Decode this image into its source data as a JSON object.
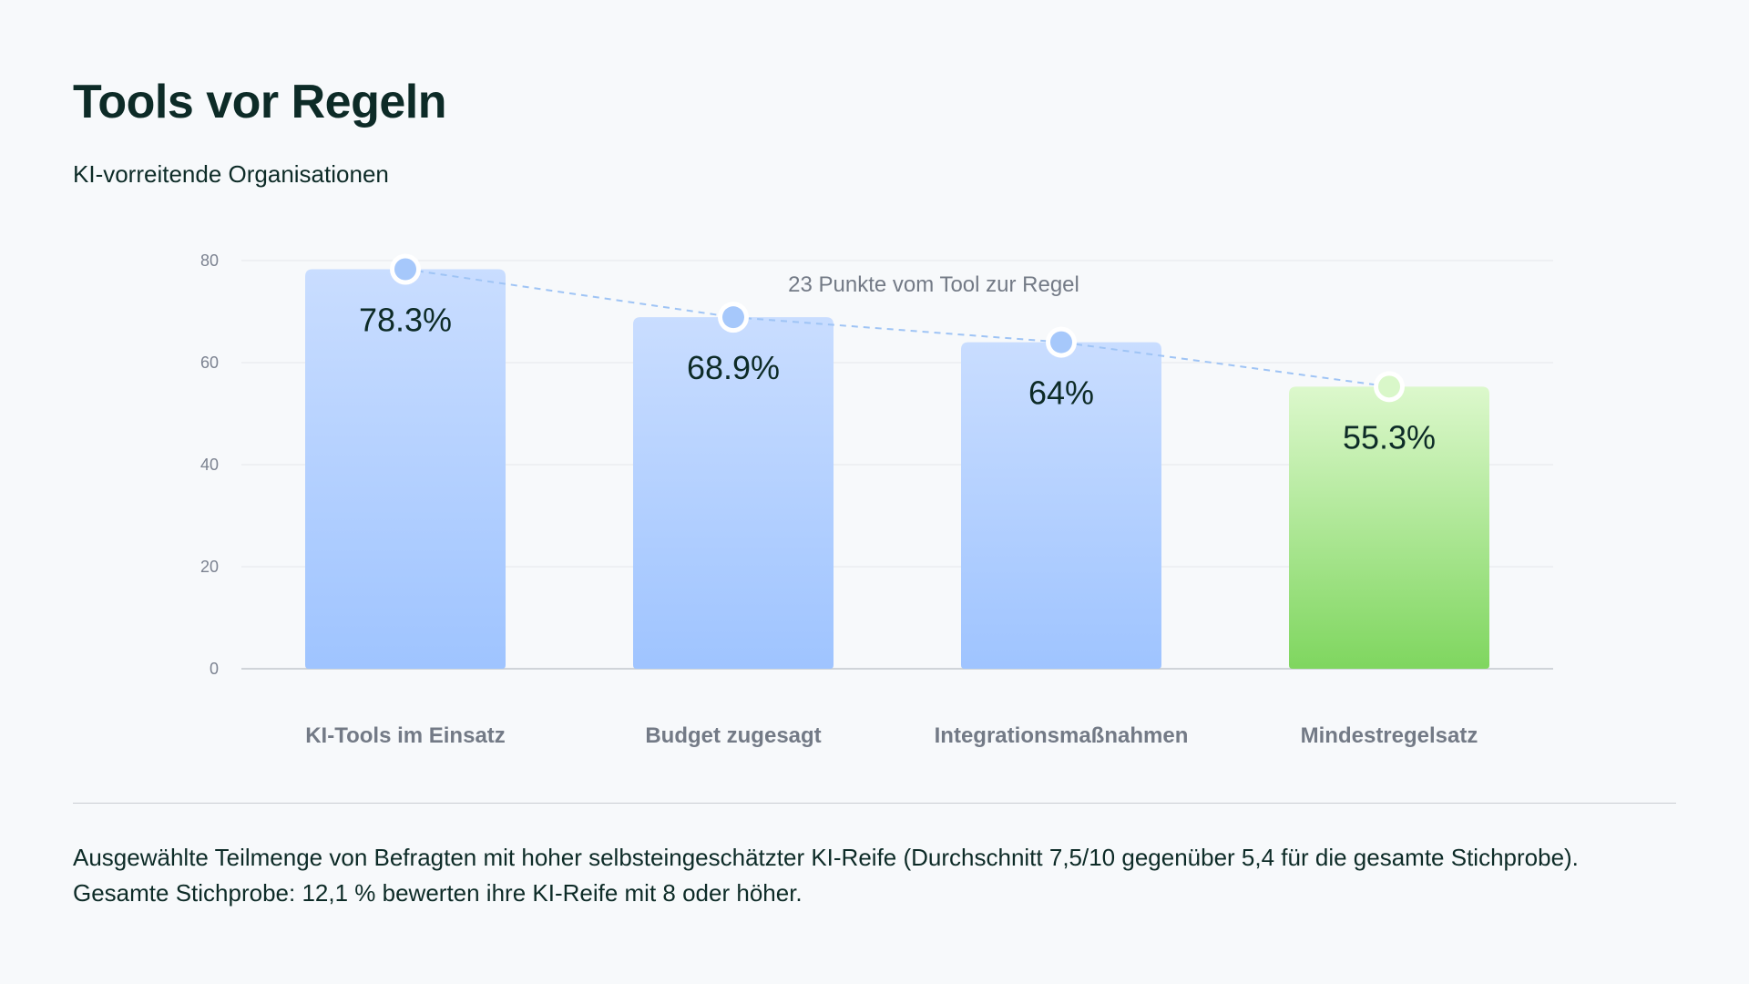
{
  "header": {
    "title": "Tools vor Regeln",
    "subtitle": "KI-vorreitende Organisationen"
  },
  "footnote": "Ausgewählte Teilmenge von Befragten mit hoher selbsteingeschätzter KI-Reife (Durchschnitt 7,5/10 gegenüber 5,4 für die gesamte Stichprobe). Gesamte Stichprobe: 12,1 % bewerten ihre KI-Reife mit 8 oder höher.",
  "colors": {
    "bar_blue_top": "#c9ddff",
    "bar_blue_bottom": "#9fc4ff",
    "bar_green_top": "#dcf8cc",
    "bar_green_bottom": "#7fd65f",
    "marker_blue": "#a6c8fb",
    "marker_green": "#d9f7c9",
    "trend_line": "#9fc4f5"
  },
  "chart_data": {
    "type": "bar",
    "categories": [
      "KI-Tools im Einsatz",
      "Budget zugesagt",
      "Integrationsmaßnahmen",
      "Mindestregelsatz"
    ],
    "values": [
      78.3,
      68.9,
      64,
      55.3
    ],
    "value_labels": [
      "78.3%",
      "68.9%",
      "64%",
      "55.3%"
    ],
    "highlight": [
      false,
      false,
      false,
      true
    ],
    "title": "Tools vor Regeln",
    "subtitle": "KI-vorreitende Organisationen",
    "ylim": [
      0,
      80
    ],
    "yticks": [
      0,
      20,
      40,
      60,
      80
    ],
    "grid": true,
    "trend_line": true,
    "annotation": "23 Punkte vom Tool zur Regel"
  }
}
